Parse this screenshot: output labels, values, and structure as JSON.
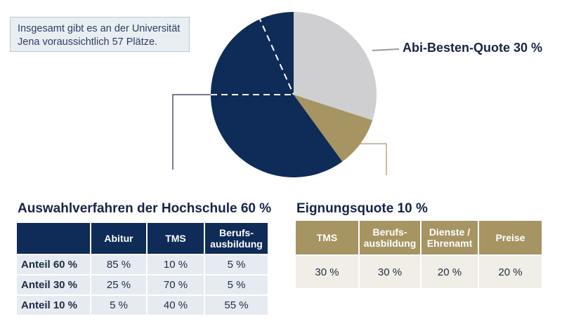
{
  "info_text": "Insgesamt gibt es an der Universität Jena voraussichtlich 57 Plätze.",
  "chart_data": {
    "type": "pie",
    "slices": [
      {
        "label": "Abi-Besten-Quote 30 %",
        "value": 30,
        "color": "#cfcfd1"
      },
      {
        "label": "Eignungsquote 10 %",
        "value": 10,
        "color": "#a69463"
      },
      {
        "label": "Auswahlverfahren der Hochschule 60 %",
        "value": 60,
        "color": "#0f2b57"
      }
    ],
    "annotations": [
      "Abi-Besten-Quote 30 %"
    ]
  },
  "table_hochschule": {
    "title": "Auswahlverfahren der Hochschule 60 %",
    "headers": [
      "",
      "Abitur",
      "TMS",
      "Berufs-\nausbildung"
    ],
    "rows": [
      [
        "Anteil 60 %",
        "85 %",
        "10 %",
        "5 %"
      ],
      [
        "Anteil 30 %",
        "25 %",
        "70 %",
        "5 %"
      ],
      [
        "Anteil 10 %",
        "5 %",
        "40 %",
        "55 %"
      ]
    ]
  },
  "table_eignung": {
    "title": "Eignungsquote 10 %",
    "headers": [
      "TMS",
      "Berufs-\nausbildung",
      "Dienste /\nEhrenamt",
      "Preise"
    ],
    "rows": [
      [
        "30 %",
        "30 %",
        "20 %",
        "20 %"
      ]
    ]
  }
}
